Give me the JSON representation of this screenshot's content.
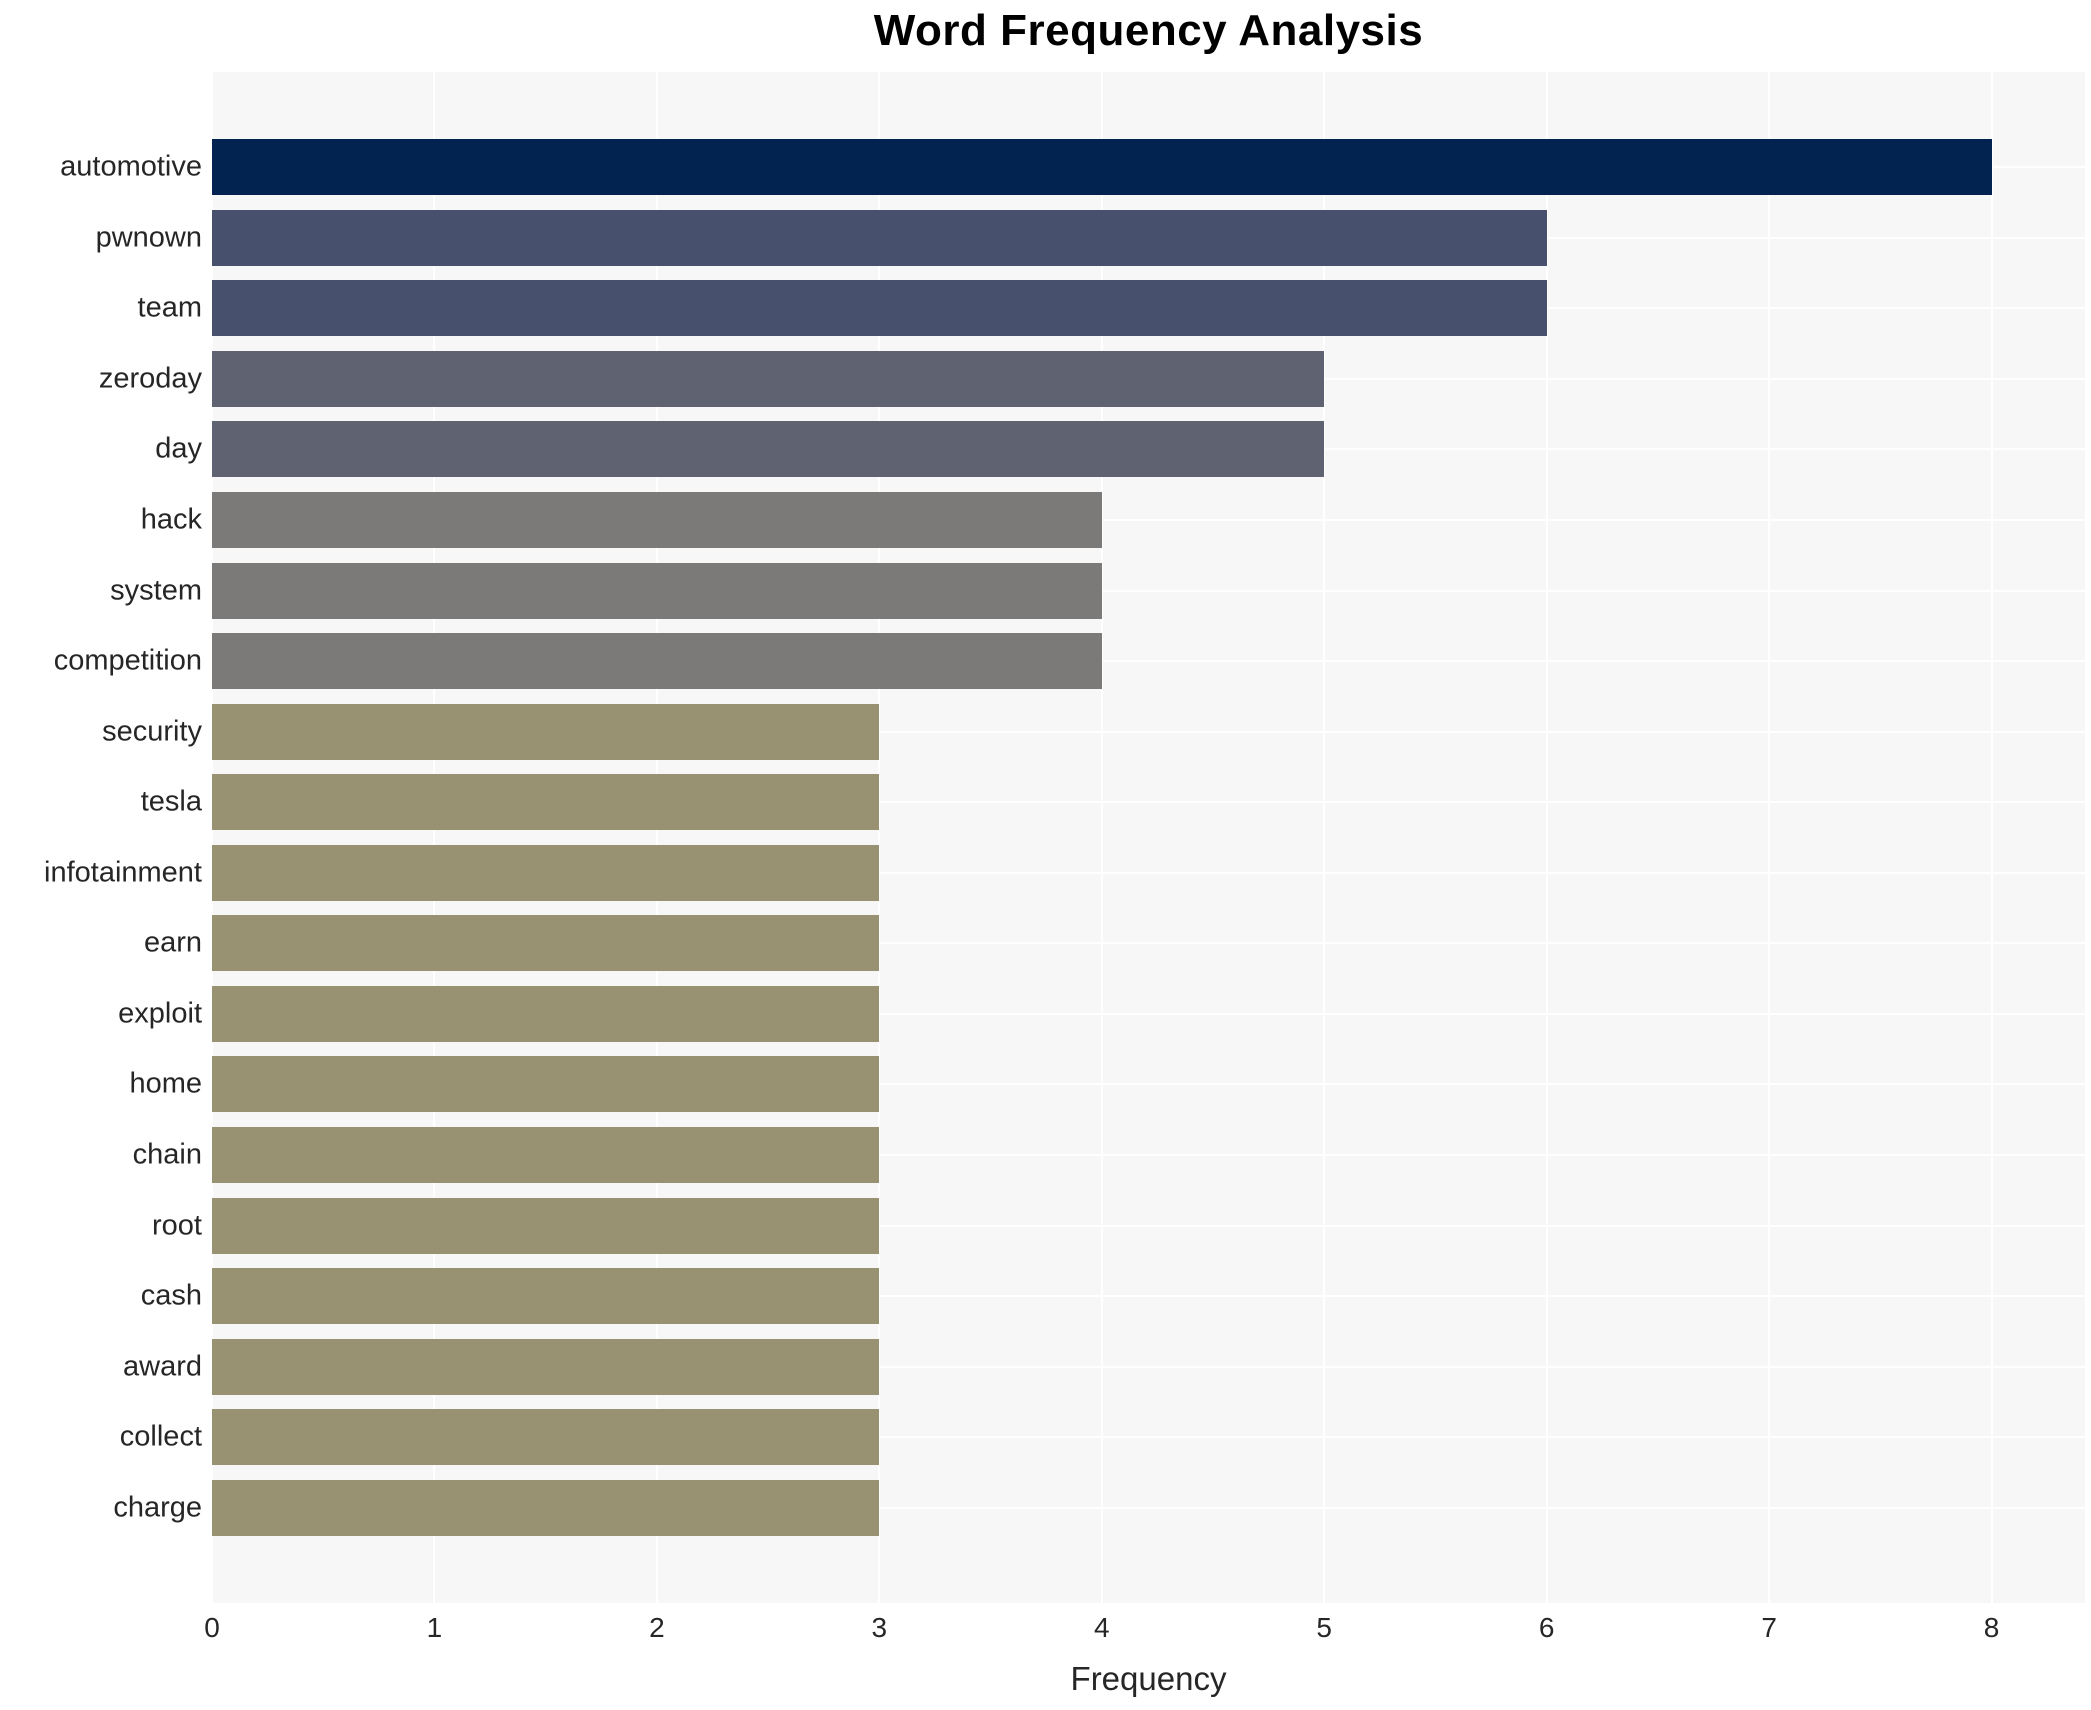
{
  "chart_data": {
    "type": "bar",
    "orientation": "horizontal",
    "title": "Word Frequency Analysis",
    "xlabel": "Frequency",
    "ylabel": "",
    "xlim": [
      0,
      8.42
    ],
    "xticks": [
      0,
      1,
      2,
      3,
      4,
      5,
      6,
      7,
      8
    ],
    "grid": true,
    "legend_position": "none",
    "background": {
      "figure": "#ffffff",
      "plot": "#f7f7f8",
      "gridline": "#ffffff"
    },
    "categories": [
      "automotive",
      "pwnown",
      "team",
      "zeroday",
      "day",
      "hack",
      "system",
      "competition",
      "security",
      "tesla",
      "infotainment",
      "earn",
      "exploit",
      "home",
      "chain",
      "root",
      "cash",
      "award",
      "collect",
      "charge"
    ],
    "values": [
      8,
      6,
      6,
      5,
      5,
      4,
      4,
      4,
      3,
      3,
      3,
      3,
      3,
      3,
      3,
      3,
      3,
      3,
      3,
      3
    ],
    "colors": [
      "#02234f",
      "#47506c",
      "#47506c",
      "#5f6270",
      "#5f6270",
      "#7b7a78",
      "#7b7a78",
      "#7b7a78",
      "#999272",
      "#999272",
      "#999272",
      "#999272",
      "#999272",
      "#999272",
      "#999272",
      "#999272",
      "#999272",
      "#999272",
      "#999272",
      "#999272"
    ]
  }
}
